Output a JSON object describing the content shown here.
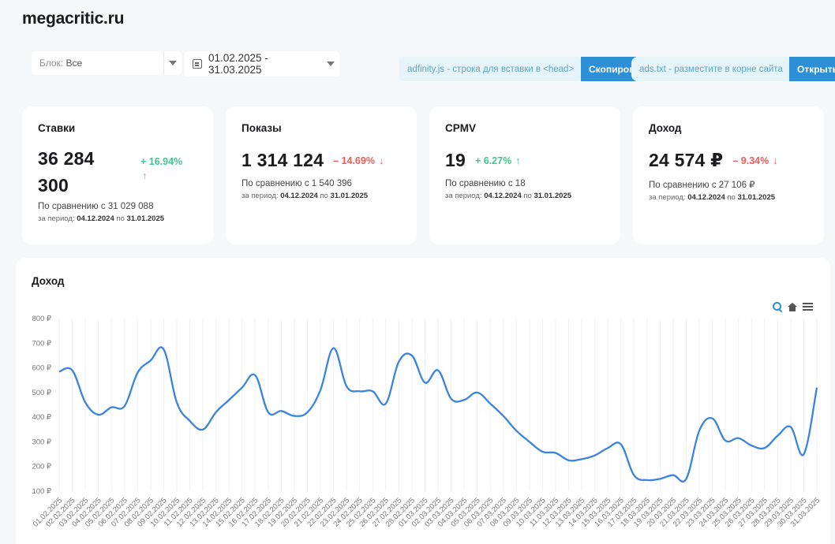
{
  "site_title": "megacritic.ru",
  "filters": {
    "block_label": "Блок:",
    "block_value": "Все",
    "date_range": "01.02.2025 - 31.03.2025"
  },
  "snippets": {
    "adfinity_text": "adfinity.js - строка для вставки в <head>",
    "copy_label": "Скопировать",
    "ads_text": "ads.txt - разместите в корне сайта",
    "open_label": "Открыть"
  },
  "cards": [
    {
      "title": "Ставки",
      "value": "36 284 300",
      "value_line1": "36 284",
      "value_line2": "300",
      "delta": "+ 16.94%",
      "direction": "up",
      "compare": "По сравнению с 31 029 088",
      "period_label": "за период:",
      "period_from": "04.12.2024",
      "period_to_label": "по",
      "period_to": "31.01.2025"
    },
    {
      "title": "Показы",
      "value": "1 314 124",
      "delta": "– 14.69%",
      "direction": "down",
      "compare": "По сравнению с 1 540 396",
      "period_label": "за период:",
      "period_from": "04.12.2024",
      "period_to_label": "по",
      "period_to": "31.01.2025"
    },
    {
      "title": "CPMV",
      "value": "19",
      "delta": "+ 6.27%",
      "direction": "up",
      "compare": "По сравнению с 18",
      "period_label": "за период:",
      "period_from": "04.12.2024",
      "period_to_label": "по",
      "period_to": "31.01.2025"
    },
    {
      "title": "Доход",
      "value": "24 574 ₽",
      "delta": "– 9.34%",
      "direction": "down",
      "compare": "По сравнению с 27 106 ₽",
      "period_label": "за период:",
      "period_from": "04.12.2024",
      "period_to_label": "по",
      "period_to": "31.01.2025"
    }
  ],
  "icons": {
    "calendar": "calendar-icon",
    "zoom": "zoom-in-icon",
    "reset": "home-icon",
    "menu": "menu-icon",
    "up": "arrow-up-icon",
    "down": "arrow-down-icon"
  },
  "colors": {
    "accent": "#2d8fd6",
    "up": "#41c48f",
    "down": "#ee5a5a",
    "line": "#3a84e0"
  },
  "chart_title": "Доход",
  "chart_data": {
    "type": "line",
    "title": "Доход",
    "xlabel": "",
    "ylabel": "",
    "ylim": [
      100,
      800
    ],
    "yticks": [
      "100 ₽",
      "200 ₽",
      "300 ₽",
      "400 ₽",
      "500 ₽",
      "600 ₽",
      "700 ₽",
      "800 ₽"
    ],
    "grid": "vertical",
    "x": [
      "01.02.2025",
      "02.02.2025",
      "03.02.2025",
      "04.02.2025",
      "05.02.2025",
      "06.02.2025",
      "07.02.2025",
      "08.02.2025",
      "09.02.2025",
      "10.02.2025",
      "11.02.2025",
      "12.02.2025",
      "13.02.2025",
      "14.02.2025",
      "15.02.2025",
      "16.02.2025",
      "17.02.2025",
      "18.02.2025",
      "19.02.2025",
      "20.02.2025",
      "21.02.2025",
      "22.02.2025",
      "23.02.2025",
      "24.02.2025",
      "25.02.2025",
      "26.02.2025",
      "27.02.2025",
      "28.02.2025",
      "01.03.2025",
      "02.03.2025",
      "03.03.2025",
      "04.03.2025",
      "05.03.2025",
      "06.03.2025",
      "07.03.2025",
      "08.03.2025",
      "09.03.2025",
      "10.03.2025",
      "11.03.2025",
      "12.03.2025",
      "13.03.2025",
      "14.03.2025",
      "15.03.2025",
      "16.03.2025",
      "17.03.2025",
      "18.03.2025",
      "19.03.2025",
      "20.03.2025",
      "21.03.2025",
      "22.03.2025",
      "23.03.2025",
      "24.03.2025",
      "25.03.2025",
      "26.03.2025",
      "27.03.2025",
      "28.03.2025",
      "29.03.2025",
      "30.03.2025",
      "31.03.2025"
    ],
    "series": [
      {
        "name": "Доход",
        "values": [
          585,
          590,
          460,
          410,
          440,
          445,
          580,
          630,
          675,
          460,
          385,
          350,
          420,
          470,
          520,
          570,
          420,
          425,
          405,
          420,
          510,
          680,
          525,
          505,
          505,
          455,
          625,
          650,
          540,
          590,
          475,
          470,
          500,
          455,
          405,
          345,
          300,
          260,
          255,
          225,
          230,
          245,
          275,
          290,
          165,
          145,
          150,
          165,
          150,
          345,
          395,
          305,
          315,
          285,
          275,
          325,
          360,
          250,
          520
        ]
      }
    ]
  }
}
